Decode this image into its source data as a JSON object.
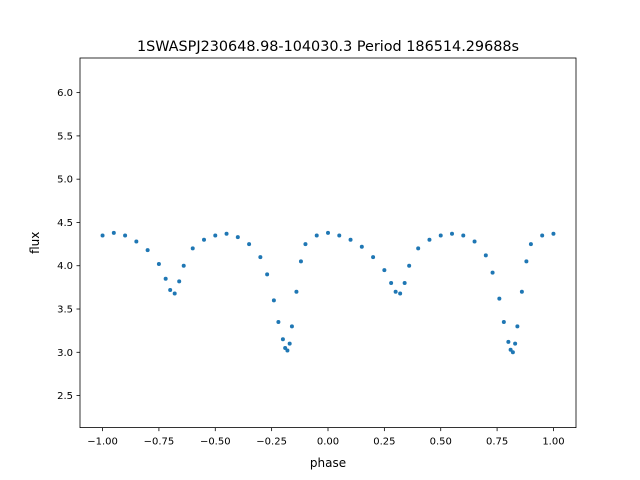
{
  "chart_data": {
    "type": "scatter",
    "title": "1SWASPJ230648.98-104030.3 Period 186514.29688s",
    "xlabel": "phase",
    "ylabel": "flux",
    "xlim": [
      -1.1,
      1.1
    ],
    "ylim": [
      2.13,
      6.4
    ],
    "xticks": [
      -1.0,
      -0.75,
      -0.5,
      -0.25,
      0.0,
      0.25,
      0.5,
      0.75,
      1.0
    ],
    "xtick_labels": [
      "−1.00",
      "−0.75",
      "−0.50",
      "−0.25",
      "0.00",
      "0.25",
      "0.50",
      "0.75",
      "1.00"
    ],
    "yticks": [
      2.5,
      3.0,
      3.5,
      4.0,
      4.5,
      5.0,
      5.5,
      6.0
    ],
    "ytick_labels": [
      "2.5",
      "3.0",
      "3.5",
      "4.0",
      "4.5",
      "5.0",
      "5.5",
      "6.0"
    ],
    "grid": false,
    "legend": "none",
    "colors": {
      "points": "#1f77b4"
    },
    "series": [
      {
        "x": [
          -1.0,
          -0.95,
          -0.9,
          -0.85,
          -0.8,
          -0.75,
          -0.72,
          -0.7,
          -0.68,
          -0.66,
          -0.64,
          -0.6,
          -0.55,
          -0.5,
          -0.45,
          -0.4,
          -0.35,
          -0.3,
          -0.27,
          -0.24,
          -0.22,
          -0.2,
          -0.19,
          -0.18,
          -0.17,
          -0.16,
          -0.14,
          -0.12,
          -0.1,
          -0.05,
          0.0,
          0.05,
          0.1,
          0.15,
          0.2,
          0.25,
          0.28,
          0.3,
          0.32,
          0.34,
          0.36,
          0.4,
          0.45,
          0.5,
          0.55,
          0.6,
          0.65,
          0.7,
          0.73,
          0.76,
          0.78,
          0.8,
          0.81,
          0.82,
          0.83,
          0.84,
          0.86,
          0.88,
          0.9,
          0.95,
          1.0
        ],
        "y": [
          4.35,
          4.38,
          4.35,
          4.28,
          4.18,
          4.02,
          3.85,
          3.72,
          3.68,
          3.82,
          4.0,
          4.2,
          4.3,
          4.35,
          4.37,
          4.33,
          4.25,
          4.1,
          3.9,
          3.6,
          3.35,
          3.15,
          3.05,
          3.02,
          3.1,
          3.3,
          3.7,
          4.05,
          4.25,
          4.35,
          4.38,
          4.35,
          4.3,
          4.22,
          4.1,
          3.95,
          3.8,
          3.7,
          3.68,
          3.8,
          4.0,
          4.2,
          4.3,
          4.35,
          4.37,
          4.35,
          4.28,
          4.12,
          3.92,
          3.62,
          3.35,
          3.12,
          3.03,
          3.0,
          3.1,
          3.3,
          3.7,
          4.05,
          4.25,
          4.35,
          4.37
        ]
      }
    ]
  }
}
